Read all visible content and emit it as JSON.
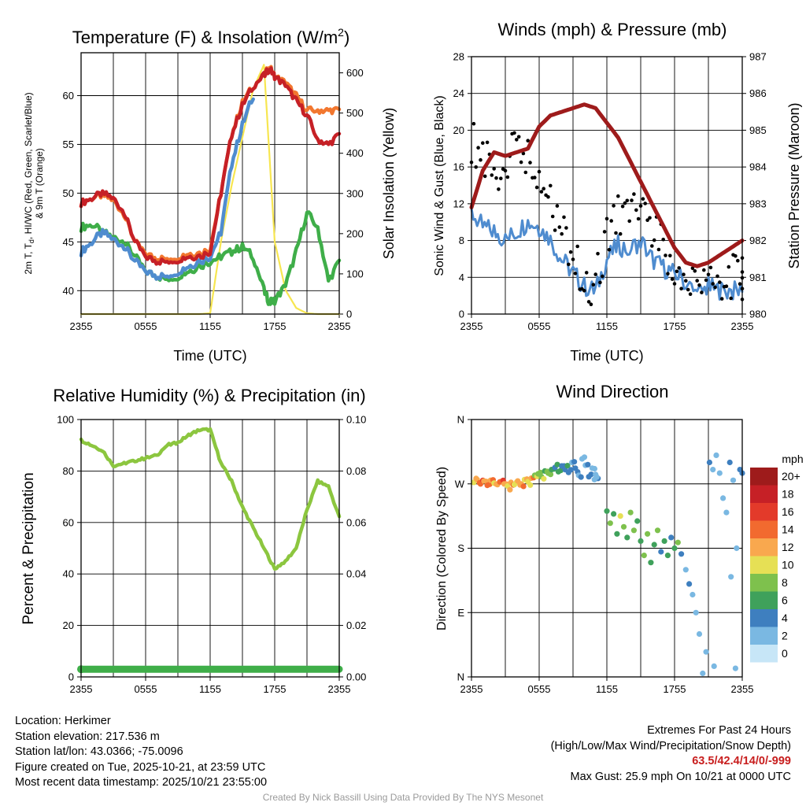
{
  "chart_data": [
    {
      "type": "line",
      "title": "Temperature (F) & Insolation (W/m2)",
      "xlabel": "Time (UTC)",
      "ylabel": "2m T, Td, HI/WC (Red, Green, Scarlet/Blue) & 9m T (Orange)",
      "ylabel_parts": [
        "2m T, T",
        "d",
        ", HI/WC (Red, Green, Scarlet/Blue)",
        "& 9m T (Orange)"
      ],
      "y2label": "Solar Insolation (Yellow)",
      "xticks": [
        "2355",
        "0555",
        "1155",
        "1755",
        "2355"
      ],
      "ylim": [
        37.6,
        64.4
      ],
      "yticks": [
        40,
        45,
        50,
        55,
        60
      ],
      "y2lim": [
        0,
        650
      ],
      "y2ticks": [
        0,
        100,
        200,
        300,
        400,
        500,
        600
      ],
      "x_hours": [
        0,
        1,
        2,
        3,
        4,
        5,
        6,
        7,
        8,
        9,
        10,
        11,
        12,
        13,
        14,
        15,
        16,
        17,
        17.5,
        18,
        19,
        20,
        21,
        22,
        23,
        24
      ],
      "series": [
        {
          "name": "2m Temperature",
          "color": "#c62026",
          "values": [
            49,
            49.5,
            50,
            49.5,
            48,
            45,
            43.5,
            43,
            43,
            43.2,
            43.5,
            43.5,
            44,
            50,
            56,
            59,
            61,
            62,
            62.8,
            62,
            61,
            59.5,
            58,
            55.5,
            55,
            56
          ]
        },
        {
          "name": "9m Temperature",
          "color": "#f2772f",
          "values": [
            49,
            49.5,
            49.8,
            49.3,
            47.8,
            45,
            43.8,
            43.3,
            43.3,
            43.5,
            43.8,
            43.8,
            44.3,
            50,
            56,
            59.3,
            61,
            62,
            63,
            62,
            61.3,
            60,
            58.5,
            58.5,
            58.5,
            58.5
          ]
        },
        {
          "name": "Dewpoint",
          "color": "#3fae49",
          "values": [
            46.5,
            46.8,
            46,
            45.5,
            45,
            43.5,
            42,
            41.5,
            41.2,
            41.5,
            42,
            42.5,
            43,
            43.5,
            44,
            44.5,
            43.5,
            40,
            38.8,
            39,
            40.5,
            44,
            48,
            46.5,
            41,
            43
          ]
        },
        {
          "name": "Heat Index / Wind Chill",
          "color": "#4f8ccf",
          "values": [
            44,
            45,
            46,
            45.3,
            44.5,
            43,
            42,
            41.5,
            41.5,
            42,
            42.5,
            43,
            43.5,
            46,
            53,
            57,
            60,
            null,
            null,
            null,
            null,
            null,
            null,
            null,
            null,
            null
          ]
        },
        {
          "name": "Solar Insolation",
          "color": "#f7e651",
          "axis": "right",
          "values": [
            0,
            0,
            0,
            0,
            0,
            0,
            0,
            0,
            0,
            0,
            0,
            0,
            2,
            180,
            320,
            440,
            560,
            620,
            400,
            180,
            60,
            15,
            2,
            0,
            0,
            0
          ]
        }
      ]
    },
    {
      "type": "line",
      "title": "Winds (mph) & Pressure (mb)",
      "xlabel": "Time (UTC)",
      "ylabel": "Sonic Wind & Gust (Blue, Black)",
      "y2label": "Station Pressure (Maroon)",
      "xticks": [
        "2355",
        "0555",
        "1155",
        "1755",
        "2355"
      ],
      "ylim": [
        0,
        28
      ],
      "yticks": [
        0,
        4,
        8,
        12,
        16,
        20,
        24,
        28
      ],
      "y2lim": [
        980,
        987
      ],
      "y2ticks": [
        980,
        981,
        982,
        983,
        984,
        985,
        986,
        987
      ],
      "x_hours": [
        0,
        1,
        2,
        3,
        4,
        5,
        6,
        7,
        8,
        9,
        10,
        11,
        12,
        13,
        14,
        15,
        16,
        17,
        18,
        19,
        20,
        21,
        22,
        23,
        24
      ],
      "series": [
        {
          "name": "Sonic Wind",
          "color": "#4f8ccf",
          "values": [
            11,
            9.5,
            9,
            8,
            9,
            10,
            9.5,
            8,
            6,
            4.5,
            3,
            2.5,
            6,
            7.5,
            7,
            8,
            6,
            5,
            4.5,
            3.5,
            2,
            3,
            2.5,
            2.5,
            2.5
          ]
        },
        {
          "name": "Gust",
          "color": "#000000",
          "marker": "dot",
          "values": [
            19,
            17,
            15,
            16,
            18,
            17,
            15,
            13,
            9,
            6,
            4,
            3,
            9,
            11,
            10,
            12,
            9,
            7,
            5,
            4,
            3,
            4,
            3.5,
            4,
            4
          ]
        },
        {
          "name": "Station Pressure",
          "color": "#9e1b1b",
          "axis": "right",
          "values": [
            982.9,
            983.9,
            984.4,
            984.3,
            984.4,
            984.5,
            985.1,
            985.4,
            985.5,
            985.6,
            985.7,
            985.6,
            985.2,
            984.8,
            984.2,
            983.6,
            983.0,
            982.4,
            981.8,
            981.4,
            981.3,
            981.4,
            981.6,
            981.8,
            982.0
          ]
        }
      ]
    },
    {
      "type": "line",
      "title": "Relative Humidity (%) & Precipitation (in)",
      "xlabel": "",
      "ylabel": "Percent & Precipitation",
      "xticks": [
        "2355",
        "0555",
        "1155",
        "1755",
        "2355"
      ],
      "ylim": [
        0,
        100
      ],
      "yticks": [
        0,
        20,
        40,
        60,
        80,
        100
      ],
      "y2lim": [
        0,
        0.1
      ],
      "y2ticks": [
        "0.00",
        "0.02",
        "0.04",
        "0.06",
        "0.08",
        "0.10"
      ],
      "x_hours": [
        0,
        1,
        2,
        3,
        4,
        5,
        6,
        7,
        8,
        9,
        10,
        11,
        12,
        13,
        14,
        15,
        16,
        17,
        18,
        19,
        20,
        21,
        22,
        23,
        24
      ],
      "series": [
        {
          "name": "Relative Humidity",
          "color": "#8cc63f",
          "values": [
            92,
            90,
            88,
            82,
            83,
            84,
            85,
            86,
            90,
            91,
            94,
            96,
            96,
            83,
            76,
            66,
            58,
            50,
            42,
            45,
            50,
            65,
            76,
            74,
            62
          ]
        },
        {
          "name": "Precipitation",
          "color": "#3fae49",
          "axis": "right",
          "values": [
            0.003,
            0.003,
            0.003,
            0.003,
            0.003,
            0.003,
            0.003,
            0.003,
            0.003,
            0.003,
            0.003,
            0.003,
            0.003,
            0.003,
            0.003,
            0.003,
            0.003,
            0.003,
            0.003,
            0.003,
            0.003,
            0.003,
            0.003,
            0.003,
            0.003
          ]
        }
      ]
    },
    {
      "type": "scatter",
      "title": "Wind Direction",
      "ylabel": "Direction (Colored By Speed)",
      "xticks": [
        "2355",
        "0555",
        "1155",
        "1755",
        "2355"
      ],
      "ylim": [
        0,
        360
      ],
      "yticks": [
        {
          "value": 0,
          "label": "N"
        },
        {
          "value": 90,
          "label": "E"
        },
        {
          "value": 180,
          "label": "S"
        },
        {
          "value": 270,
          "label": "W"
        },
        {
          "value": 360,
          "label": "N"
        }
      ],
      "colorbar": {
        "title": "mph",
        "labels": [
          "20+",
          "18",
          "16",
          "14",
          "12",
          "10",
          "8",
          "6",
          "4",
          "2",
          "0"
        ],
        "colors": [
          "#9e1b1b",
          "#c62026",
          "#e33a2a",
          "#f26a2f",
          "#f9a84e",
          "#e6e055",
          "#7ec14d",
          "#3fa15b",
          "#3e7fbf",
          "#7ab8e2",
          "#c7e6f7"
        ]
      },
      "points": [
        {
          "x": 0.2,
          "dir": 272,
          "speed": 10
        },
        {
          "x": 0.5,
          "dir": 276,
          "speed": 12
        },
        {
          "x": 0.8,
          "dir": 270,
          "speed": 14
        },
        {
          "x": 1.1,
          "dir": 274,
          "speed": 11
        },
        {
          "x": 1.4,
          "dir": 268,
          "speed": 13
        },
        {
          "x": 1.7,
          "dir": 275,
          "speed": 12
        },
        {
          "x": 2.0,
          "dir": 271,
          "speed": 10
        },
        {
          "x": 2.3,
          "dir": 269,
          "speed": 12
        },
        {
          "x": 2.6,
          "dir": 273,
          "speed": 14
        },
        {
          "x": 2.9,
          "dir": 270,
          "speed": 11
        },
        {
          "x": 3.2,
          "dir": 267,
          "speed": 10
        },
        {
          "x": 3.5,
          "dir": 272,
          "speed": 12
        },
        {
          "x": 3.8,
          "dir": 269,
          "speed": 9
        },
        {
          "x": 4.1,
          "dir": 274,
          "speed": 11
        },
        {
          "x": 4.4,
          "dir": 270,
          "speed": 12
        },
        {
          "x": 4.7,
          "dir": 276,
          "speed": 10
        },
        {
          "x": 5.0,
          "dir": 273,
          "speed": 9
        },
        {
          "x": 5.3,
          "dir": 278,
          "speed": 12
        },
        {
          "x": 5.6,
          "dir": 282,
          "speed": 8
        },
        {
          "x": 5.9,
          "dir": 284,
          "speed": 7
        },
        {
          "x": 6.2,
          "dir": 280,
          "speed": 8
        },
        {
          "x": 6.5,
          "dir": 288,
          "speed": 6
        },
        {
          "x": 6.8,
          "dir": 285,
          "speed": 7
        },
        {
          "x": 7.1,
          "dir": 290,
          "speed": 5
        },
        {
          "x": 7.4,
          "dir": 293,
          "speed": 4
        },
        {
          "x": 7.7,
          "dir": 287,
          "speed": 5
        },
        {
          "x": 8.0,
          "dir": 295,
          "speed": 3
        },
        {
          "x": 8.3,
          "dir": 290,
          "speed": 4
        },
        {
          "x": 8.6,
          "dir": 286,
          "speed": 3
        },
        {
          "x": 8.9,
          "dir": 300,
          "speed": 2
        },
        {
          "x": 9.2,
          "dir": 292,
          "speed": 3
        },
        {
          "x": 9.5,
          "dir": 282,
          "speed": 2
        },
        {
          "x": 9.8,
          "dir": 305,
          "speed": 1
        },
        {
          "x": 10.1,
          "dir": 296,
          "speed": 2
        },
        {
          "x": 10.4,
          "dir": 280,
          "speed": 3
        },
        {
          "x": 10.7,
          "dir": 292,
          "speed": 1
        },
        {
          "x": 11.0,
          "dir": 283,
          "speed": 2
        },
        {
          "x": 12.0,
          "dir": 232,
          "speed": 6
        },
        {
          "x": 12.3,
          "dir": 215,
          "speed": 7
        },
        {
          "x": 12.6,
          "dir": 228,
          "speed": 5
        },
        {
          "x": 12.9,
          "dir": 200,
          "speed": 6
        },
        {
          "x": 13.2,
          "dir": 225,
          "speed": 9
        },
        {
          "x": 13.5,
          "dir": 210,
          "speed": 7
        },
        {
          "x": 13.8,
          "dir": 195,
          "speed": 6
        },
        {
          "x": 14.1,
          "dir": 230,
          "speed": 8
        },
        {
          "x": 14.4,
          "dir": 205,
          "speed": 7
        },
        {
          "x": 14.7,
          "dir": 218,
          "speed": 5
        },
        {
          "x": 15.0,
          "dir": 190,
          "speed": 6
        },
        {
          "x": 15.3,
          "dir": 170,
          "speed": 7
        },
        {
          "x": 15.6,
          "dir": 200,
          "speed": 8
        },
        {
          "x": 15.9,
          "dir": 160,
          "speed": 5
        },
        {
          "x": 16.2,
          "dir": 185,
          "speed": 6
        },
        {
          "x": 16.5,
          "dir": 205,
          "speed": 7
        },
        {
          "x": 16.8,
          "dir": 175,
          "speed": 4
        },
        {
          "x": 17.1,
          "dir": 190,
          "speed": 6
        },
        {
          "x": 17.4,
          "dir": 170,
          "speed": 5
        },
        {
          "x": 17.7,
          "dir": 195,
          "speed": 4
        },
        {
          "x": 18.0,
          "dir": 180,
          "speed": 5
        },
        {
          "x": 18.3,
          "dir": 188,
          "speed": 7
        },
        {
          "x": 18.6,
          "dir": 172,
          "speed": 3
        },
        {
          "x": 19.0,
          "dir": 150,
          "speed": 2
        },
        {
          "x": 19.3,
          "dir": 130,
          "speed": 3
        },
        {
          "x": 19.6,
          "dir": 115,
          "speed": 2
        },
        {
          "x": 19.9,
          "dir": 90,
          "speed": 2
        },
        {
          "x": 20.2,
          "dir": 60,
          "speed": 1
        },
        {
          "x": 20.5,
          "dir": 5,
          "speed": 1
        },
        {
          "x": 20.8,
          "dir": 35,
          "speed": 2
        },
        {
          "x": 21.1,
          "dir": 300,
          "speed": 3
        },
        {
          "x": 21.4,
          "dir": 290,
          "speed": 2
        },
        {
          "x": 21.7,
          "dir": 310,
          "speed": 1
        },
        {
          "x": 22.0,
          "dir": 285,
          "speed": 2
        },
        {
          "x": 22.3,
          "dir": 250,
          "speed": 2
        },
        {
          "x": 22.6,
          "dir": 230,
          "speed": 1
        },
        {
          "x": 22.9,
          "dir": 300,
          "speed": 3
        },
        {
          "x": 23.2,
          "dir": 275,
          "speed": 2
        },
        {
          "x": 23.5,
          "dir": 180,
          "speed": 2
        },
        {
          "x": 23.8,
          "dir": 290,
          "speed": 3
        },
        {
          "x": 24.0,
          "dir": 285,
          "speed": 3
        },
        {
          "x": 10.9,
          "dir": 276,
          "speed": 1
        },
        {
          "x": 21.5,
          "dir": 15,
          "speed": 1
        },
        {
          "x": 23.4,
          "dir": 12,
          "speed": 1
        },
        {
          "x": 23.0,
          "dir": 140,
          "speed": 2
        }
      ]
    }
  ],
  "footer": {
    "location": "Location: Herkimer",
    "elevation": "Station elevation: 217.536 m",
    "latlon": "Station lat/lon: 43.0366; -75.0096",
    "created": "Figure created on Tue, 2025-10-21, at 23:59 UTC",
    "recent": "Most recent data timestamp: 2025/10/21 23:55:00",
    "extremes_title": "Extremes For Past 24 Hours",
    "extremes_subtitle": "(High/Low/Max Wind/Precipitation/Snow Depth)",
    "extremes_values": "63.5/42.4/14/0/-999",
    "max_gust": "Max Gust: 25.9 mph On 10/21 at 0000 UTC",
    "credit": "Created By Nick Bassill Using Data Provided By The NYS Mesonet"
  }
}
